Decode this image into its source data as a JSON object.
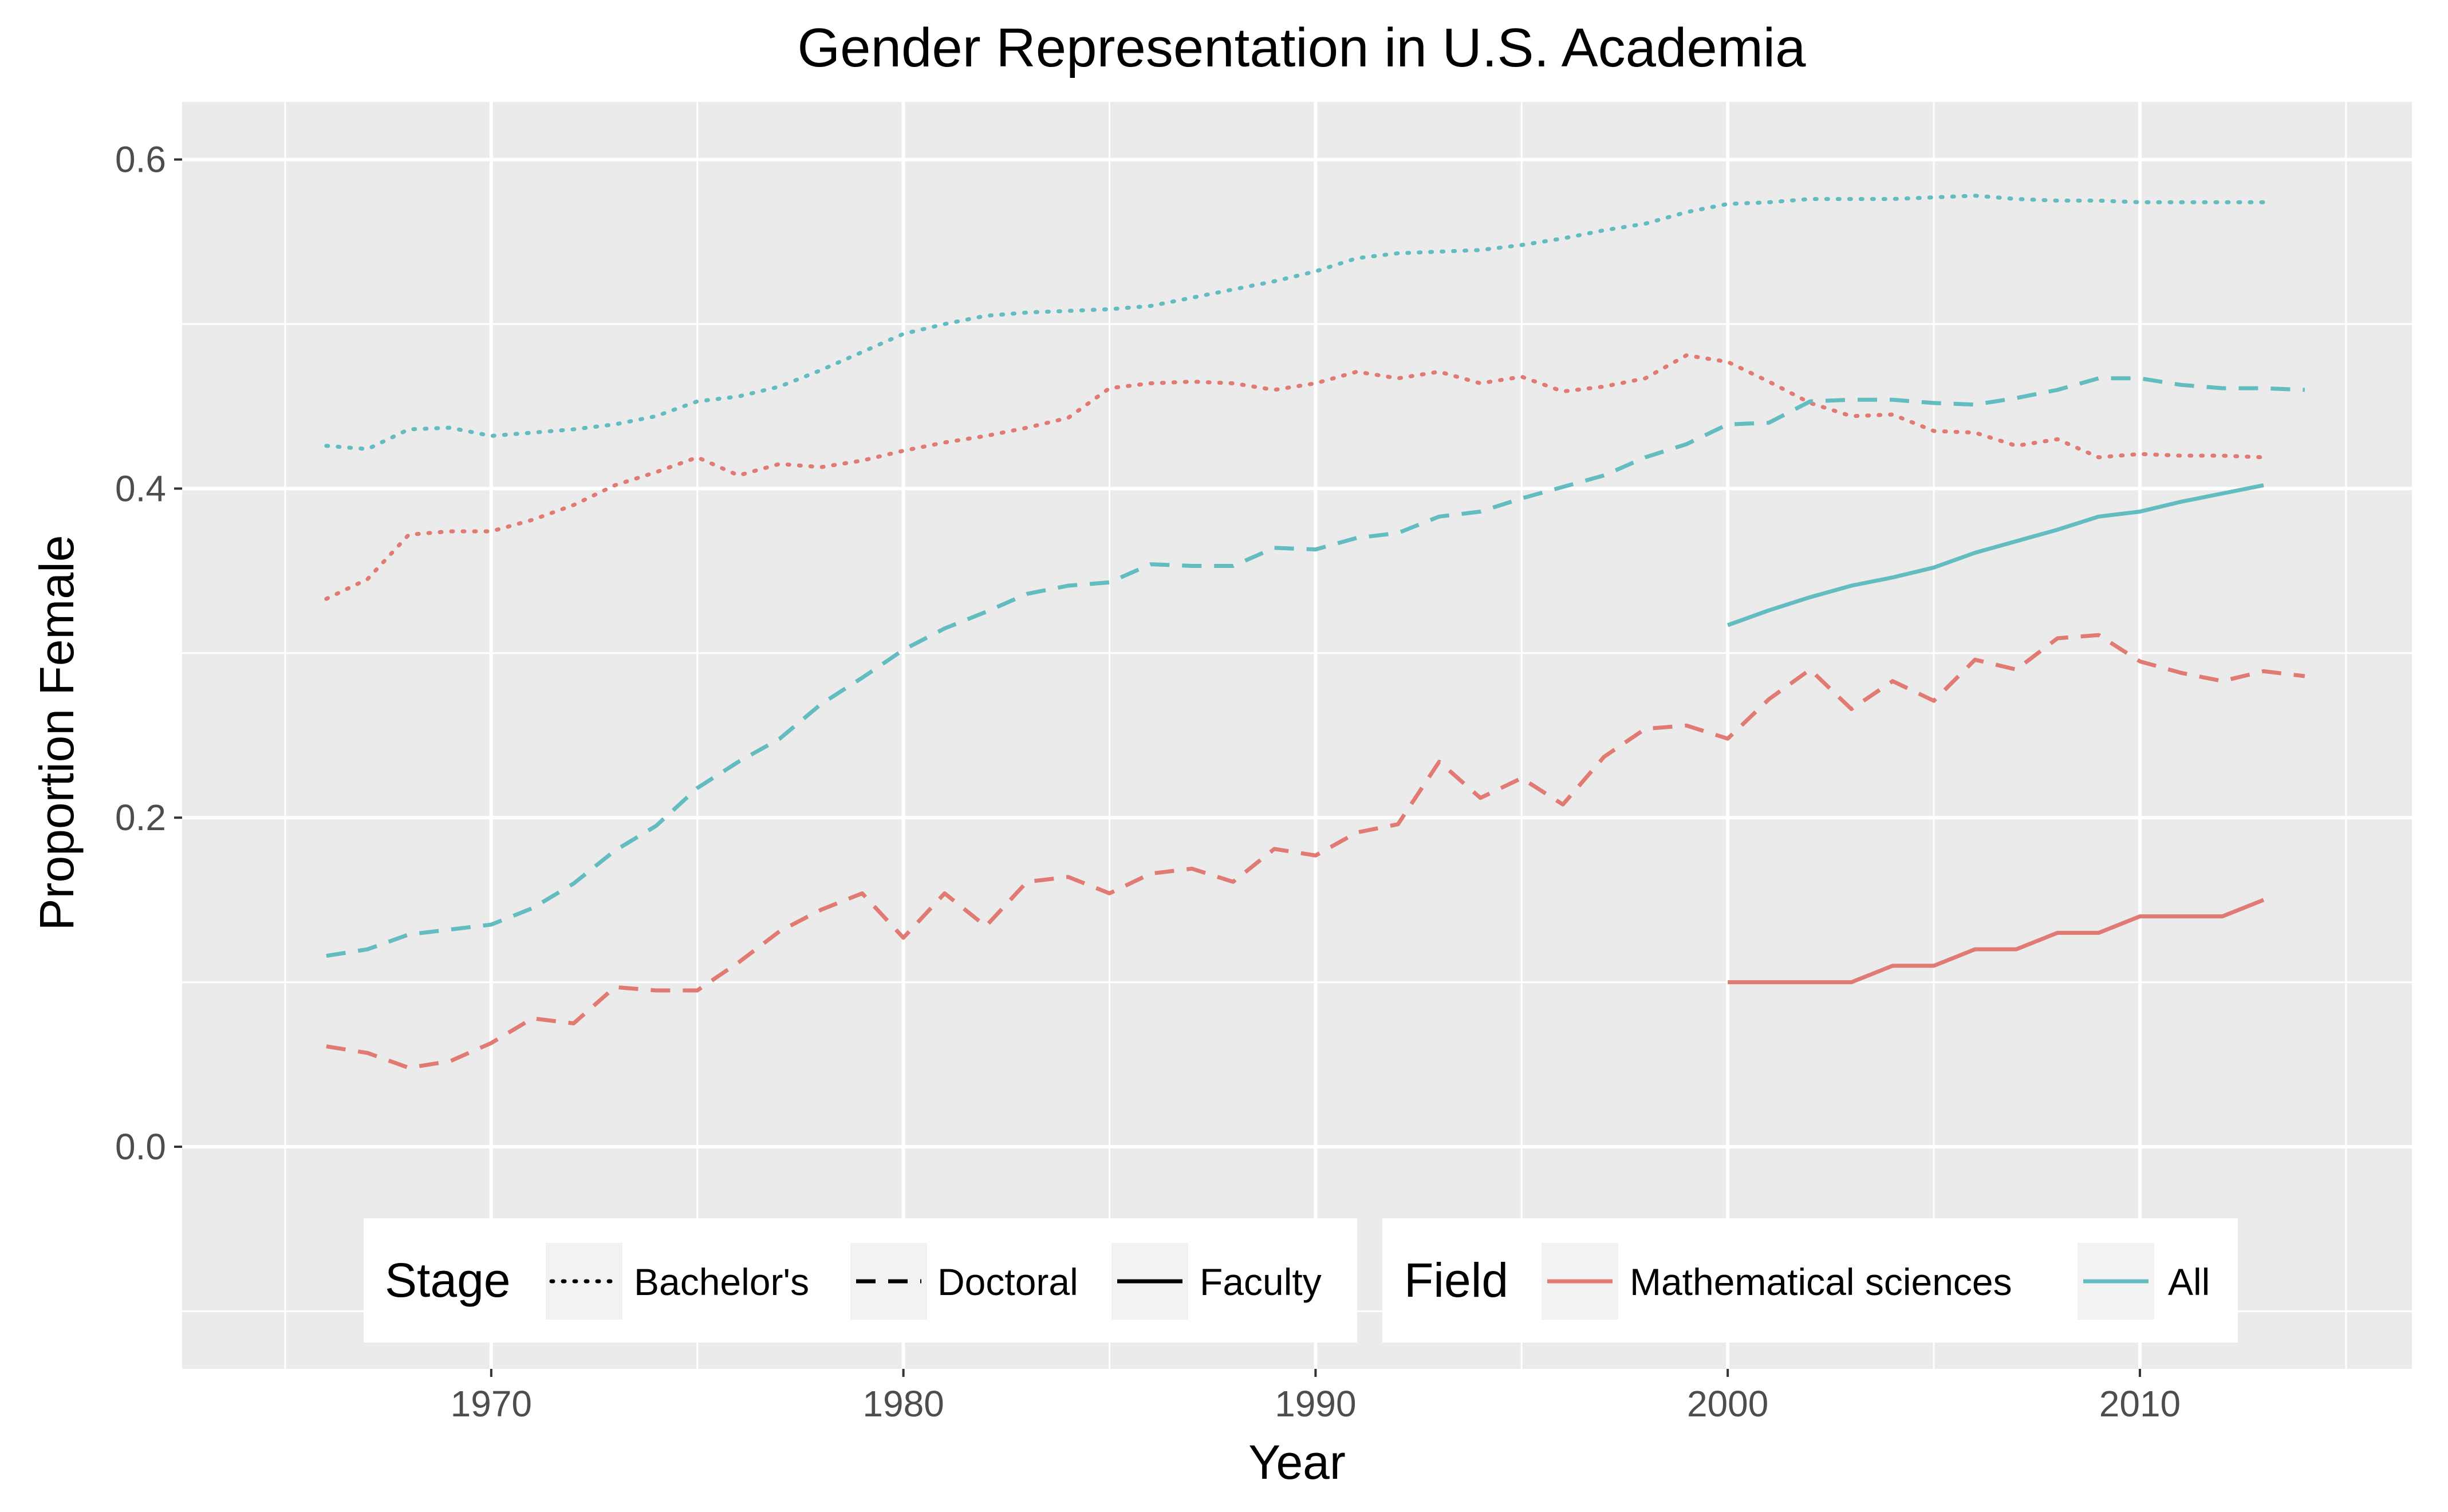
{
  "chart_data": {
    "type": "line",
    "title": "Gender Representation in U.S. Academia",
    "xlabel": "Year",
    "ylabel": "Proportion Female",
    "xlim": [
      1962.5,
      2016.6
    ],
    "ylim": [
      -0.135,
      0.635
    ],
    "x_ticks": [
      1970,
      1980,
      1990,
      2000,
      2010
    ],
    "x_tick_labels": [
      "1970",
      "1980",
      "1990",
      "2000",
      "2010"
    ],
    "y_ticks": [
      0.0,
      0.2,
      0.4,
      0.6
    ],
    "y_tick_labels": [
      "0.0",
      "0.2",
      "0.4",
      "0.6"
    ],
    "grid": true,
    "background": "#ebebeb",
    "legend_position": "bottom",
    "legends": {
      "stage": {
        "title": "Stage",
        "items": [
          {
            "label": "Bachelor's",
            "dash": "dotted"
          },
          {
            "label": "Doctoral",
            "dash": "dashed"
          },
          {
            "label": "Faculty",
            "dash": "solid"
          }
        ]
      },
      "field": {
        "title": "Field",
        "items": [
          {
            "label": "Mathematical sciences",
            "color": "#e07a73"
          },
          {
            "label": "All",
            "color": "#62bcc0"
          }
        ]
      }
    },
    "series": [
      {
        "field": "All",
        "stage": "Bachelor's",
        "color": "#62bcc0",
        "dash": "dotted",
        "x": [
          1966,
          1967,
          1968,
          1969,
          1970,
          1971,
          1972,
          1973,
          1974,
          1975,
          1976,
          1977,
          1978,
          1979,
          1980,
          1981,
          1982,
          1983,
          1984,
          1985,
          1986,
          1987,
          1988,
          1989,
          1990,
          1991,
          1992,
          1993,
          1994,
          1995,
          1996,
          1997,
          1998,
          1999,
          2000,
          2001,
          2002,
          2003,
          2004,
          2005,
          2006,
          2007,
          2008,
          2009,
          2010,
          2011,
          2012,
          2013
        ],
        "y": [
          0.426,
          0.424,
          0.436,
          0.437,
          0.432,
          0.434,
          0.436,
          0.439,
          0.444,
          0.453,
          0.456,
          0.462,
          0.472,
          0.483,
          0.494,
          0.5,
          0.505,
          0.507,
          0.508,
          0.509,
          0.511,
          0.516,
          0.521,
          0.526,
          0.532,
          0.54,
          0.543,
          0.544,
          0.545,
          0.548,
          0.552,
          0.557,
          0.561,
          0.568,
          0.573,
          0.574,
          0.576,
          0.576,
          0.576,
          0.577,
          0.578,
          0.576,
          0.575,
          0.575,
          0.574,
          0.574,
          0.574,
          0.574
        ]
      },
      {
        "field": "Mathematical sciences",
        "stage": "Bachelor's",
        "color": "#e07a73",
        "dash": "dotted",
        "x": [
          1966,
          1967,
          1968,
          1969,
          1970,
          1971,
          1972,
          1973,
          1974,
          1975,
          1976,
          1977,
          1978,
          1979,
          1980,
          1981,
          1982,
          1983,
          1984,
          1985,
          1986,
          1987,
          1988,
          1989,
          1990,
          1991,
          1992,
          1993,
          1994,
          1995,
          1996,
          1997,
          1998,
          1999,
          2000,
          2001,
          2002,
          2003,
          2004,
          2005,
          2006,
          2007,
          2008,
          2009,
          2010,
          2011,
          2012,
          2013
        ],
        "y": [
          0.333,
          0.345,
          0.372,
          0.374,
          0.374,
          0.381,
          0.39,
          0.402,
          0.41,
          0.419,
          0.408,
          0.415,
          0.413,
          0.417,
          0.423,
          0.428,
          0.432,
          0.437,
          0.443,
          0.461,
          0.464,
          0.465,
          0.464,
          0.46,
          0.464,
          0.471,
          0.467,
          0.471,
          0.464,
          0.468,
          0.459,
          0.462,
          0.467,
          0.481,
          0.477,
          0.465,
          0.452,
          0.444,
          0.445,
          0.435,
          0.434,
          0.426,
          0.43,
          0.419,
          0.421,
          0.42,
          0.42,
          0.419
        ]
      },
      {
        "field": "All",
        "stage": "Doctoral",
        "color": "#62bcc0",
        "dash": "dashed",
        "x": [
          1966,
          1967,
          1968,
          1969,
          1970,
          1971,
          1972,
          1973,
          1974,
          1975,
          1976,
          1977,
          1978,
          1979,
          1980,
          1981,
          1982,
          1983,
          1984,
          1985,
          1986,
          1987,
          1988,
          1989,
          1990,
          1991,
          1992,
          1993,
          1994,
          1995,
          1996,
          1997,
          1998,
          1999,
          2000,
          2001,
          2002,
          2003,
          2004,
          2005,
          2006,
          2007,
          2008,
          2009,
          2010,
          2011,
          2012,
          2013,
          2014
        ],
        "y": [
          0.116,
          0.12,
          0.129,
          0.132,
          0.135,
          0.145,
          0.16,
          0.18,
          0.195,
          0.218,
          0.234,
          0.248,
          0.269,
          0.285,
          0.302,
          0.315,
          0.325,
          0.336,
          0.341,
          0.343,
          0.354,
          0.353,
          0.353,
          0.364,
          0.363,
          0.37,
          0.373,
          0.383,
          0.386,
          0.394,
          0.401,
          0.408,
          0.419,
          0.427,
          0.439,
          0.44,
          0.453,
          0.454,
          0.454,
          0.452,
          0.451,
          0.455,
          0.46,
          0.467,
          0.467,
          0.463,
          0.461,
          0.461,
          0.46
        ]
      },
      {
        "field": "Mathematical sciences",
        "stage": "Doctoral",
        "color": "#e07a73",
        "dash": "dashed",
        "x": [
          1966,
          1967,
          1968,
          1969,
          1970,
          1971,
          1972,
          1973,
          1974,
          1975,
          1976,
          1977,
          1978,
          1979,
          1980,
          1981,
          1982,
          1983,
          1984,
          1985,
          1986,
          1987,
          1988,
          1989,
          1990,
          1991,
          1992,
          1993,
          1994,
          1995,
          1996,
          1997,
          1998,
          1999,
          2000,
          2001,
          2002,
          2003,
          2004,
          2005,
          2006,
          2007,
          2008,
          2009,
          2010,
          2011,
          2012,
          2013,
          2014
        ],
        "y": [
          0.061,
          0.057,
          0.048,
          0.052,
          0.063,
          0.078,
          0.075,
          0.097,
          0.095,
          0.095,
          0.112,
          0.131,
          0.144,
          0.154,
          0.127,
          0.154,
          0.134,
          0.161,
          0.164,
          0.154,
          0.166,
          0.169,
          0.161,
          0.181,
          0.177,
          0.191,
          0.196,
          0.234,
          0.212,
          0.224,
          0.208,
          0.237,
          0.254,
          0.256,
          0.248,
          0.272,
          0.29,
          0.266,
          0.283,
          0.271,
          0.296,
          0.29,
          0.309,
          0.311,
          0.295,
          0.288,
          0.283,
          0.289,
          0.286
        ]
      },
      {
        "field": "All",
        "stage": "Faculty",
        "color": "#62bcc0",
        "dash": "solid",
        "x": [
          2000,
          2001,
          2002,
          2003,
          2004,
          2005,
          2006,
          2007,
          2008,
          2009,
          2010,
          2011,
          2012,
          2013
        ],
        "y": [
          0.317,
          0.326,
          0.334,
          0.341,
          0.346,
          0.352,
          0.361,
          0.368,
          0.375,
          0.383,
          0.386,
          0.392,
          0.397,
          0.402
        ]
      },
      {
        "field": "Mathematical sciences",
        "stage": "Faculty",
        "color": "#e07a73",
        "dash": "solid",
        "x": [
          2000,
          2001,
          2002,
          2003,
          2004,
          2005,
          2006,
          2007,
          2008,
          2009,
          2010,
          2011,
          2012,
          2013
        ],
        "y": [
          0.1,
          0.1,
          0.1,
          0.1,
          0.11,
          0.11,
          0.12,
          0.12,
          0.13,
          0.13,
          0.14,
          0.14,
          0.14,
          0.15
        ]
      }
    ]
  }
}
